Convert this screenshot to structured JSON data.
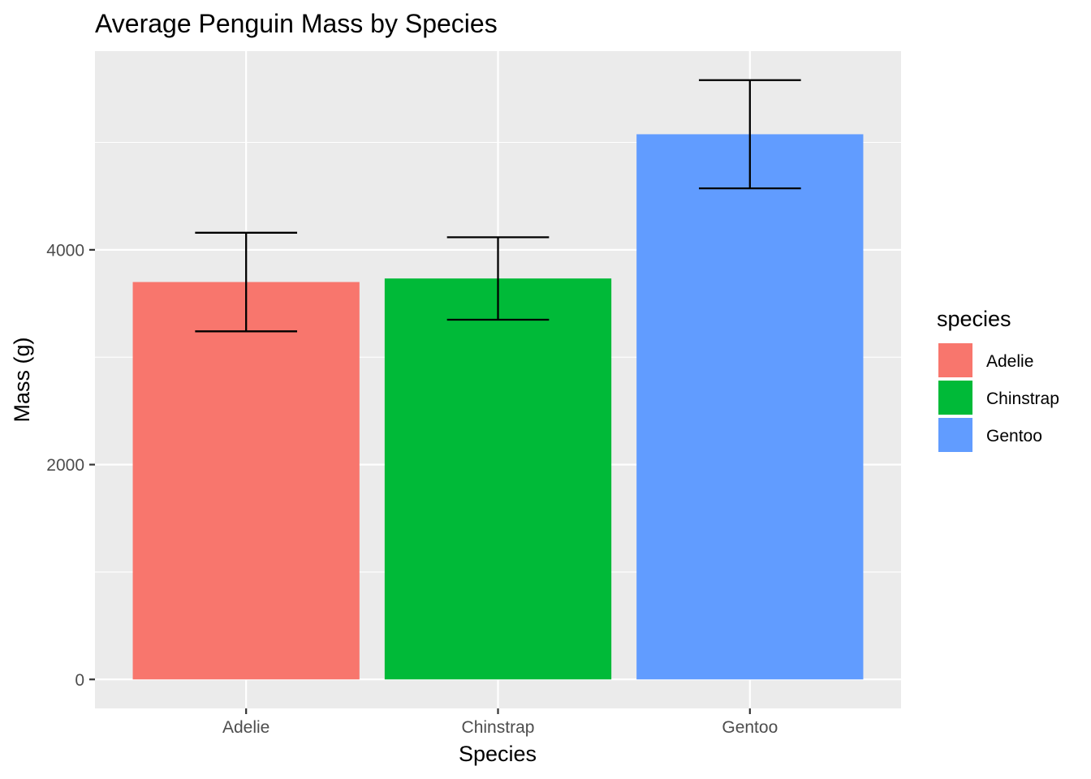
{
  "chart_data": {
    "type": "bar",
    "title": "Average Penguin Mass by Species",
    "xlabel": "Species",
    "ylabel": "Mass (g)",
    "categories": [
      "Adelie",
      "Chinstrap",
      "Gentoo"
    ],
    "values": [
      3700,
      3733,
      5076
    ],
    "error_low": [
      3241,
      3349,
      4572
    ],
    "error_high": [
      4159,
      4117,
      5580
    ],
    "ylim": [
      -270,
      5850
    ],
    "y_ticks": [
      0,
      2000,
      4000
    ],
    "y_tick_labels": [
      "0",
      "2000",
      "4000"
    ],
    "y_minor_ticks": [
      1000,
      3000,
      5000
    ],
    "grid": true,
    "panel_background": "#EBEBEB",
    "gridline_color": "#FFFFFF",
    "colors": [
      "#F8766D",
      "#00BA38",
      "#619CFF"
    ],
    "legend": {
      "title": "species",
      "position": "right",
      "entries": [
        "Adelie",
        "Chinstrap",
        "Gentoo"
      ]
    }
  }
}
